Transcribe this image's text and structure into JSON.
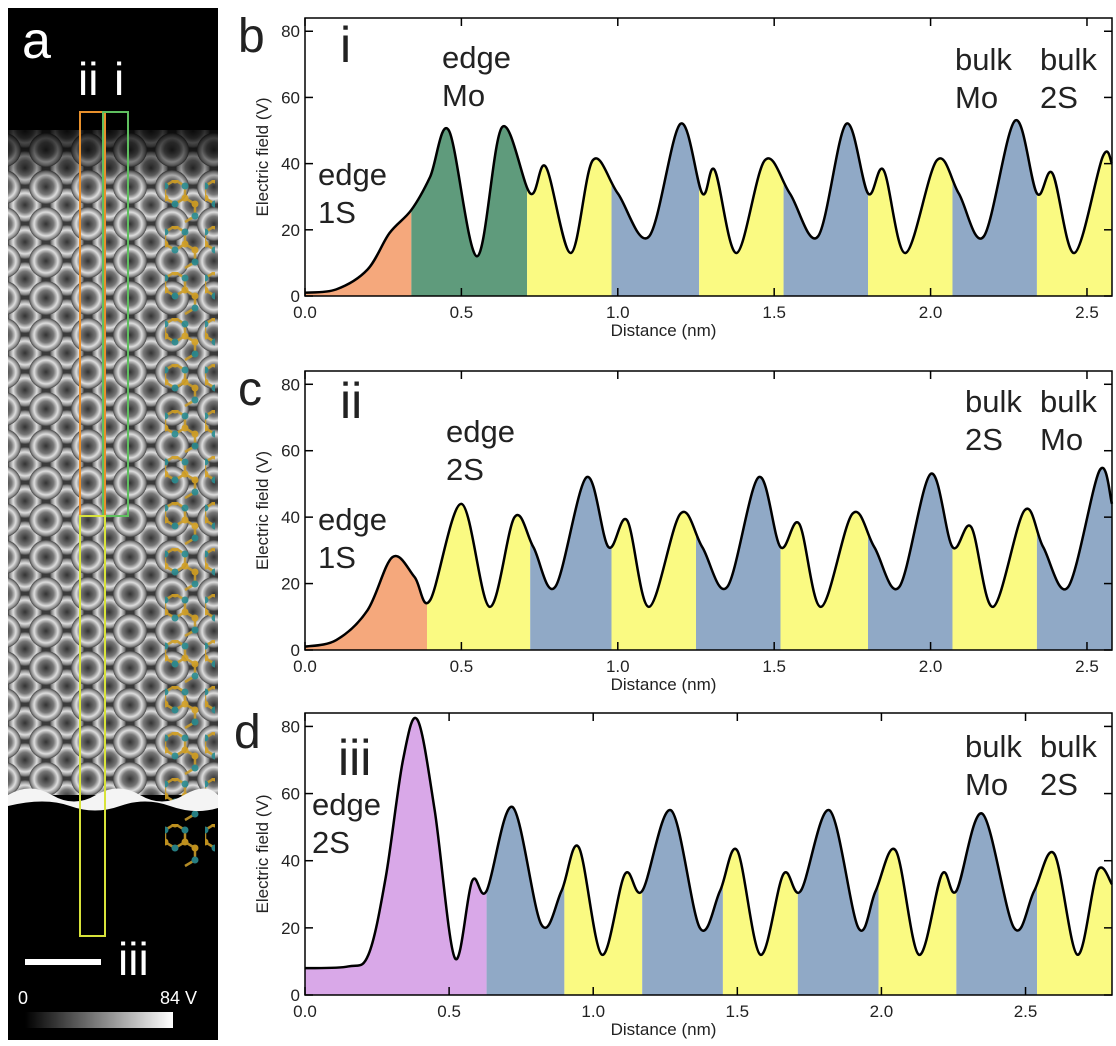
{
  "panel_a": {
    "label": "a",
    "region_labels": [
      "ii",
      "i",
      "iii"
    ],
    "colorbar_ticks": [
      0,
      {
        "value": 84,
        "label": "84 V"
      }
    ]
  },
  "chart_data": [
    {
      "type": "area",
      "panel_label": "b",
      "trace_label": "i",
      "xlabel": "Distance (nm)",
      "ylabel": "Electric field (V)",
      "annotations": [
        [
          "edge",
          "1S"
        ],
        [
          "edge",
          "Mo"
        ],
        [
          "bulk",
          "Mo"
        ],
        [
          "bulk",
          "2S"
        ]
      ],
      "xlim": [
        0,
        2.58
      ],
      "ylim": [
        0,
        84
      ],
      "xticks": [
        {
          "value": 0,
          "label": "0.0"
        },
        {
          "value": 0.5,
          "label": "0.5"
        },
        {
          "value": 1,
          "label": "1.0"
        },
        {
          "value": 1.5,
          "label": "1.5"
        },
        {
          "value": 2,
          "label": "2.0"
        },
        {
          "value": 2.5,
          "label": "2.5"
        }
      ],
      "yticks": [
        0,
        20,
        40,
        60,
        80
      ],
      "color": "#000000",
      "x": [
        0,
        0.1,
        0.2,
        0.27,
        0.34,
        0.4,
        0.46,
        0.55,
        0.63,
        0.72,
        0.77,
        0.85,
        0.92,
        1.0,
        1.1,
        1.2,
        1.27,
        1.31,
        1.38,
        1.47,
        1.55,
        1.64,
        1.73,
        1.8,
        1.85,
        1.92,
        2.02,
        2.09,
        2.17,
        2.27,
        2.34,
        2.39,
        2.46,
        2.55,
        2.58
      ],
      "values": [
        1,
        2,
        8,
        19,
        26,
        36,
        50,
        12,
        51,
        31,
        39,
        13,
        41,
        31,
        18,
        52,
        31,
        38,
        13,
        41,
        31,
        18,
        52,
        31,
        38,
        13,
        41,
        31,
        18,
        53,
        31,
        37,
        13,
        42,
        40
      ],
      "region_bounds": [
        0,
        0.34,
        0.71,
        0.98,
        1.26,
        1.53,
        1.8,
        2.07,
        2.34,
        2.58
      ],
      "region_colors": [
        "#f5a87c",
        "#5f9b7c",
        "#fafa82",
        "#90a9c6",
        "#fafa82",
        "#90a9c6",
        "#fafa82",
        "#90a9c6",
        "#fafa82"
      ]
    },
    {
      "type": "area",
      "panel_label": "c",
      "trace_label": "ii",
      "xlabel": "Distance (nm)",
      "ylabel": "Electric field (V)",
      "annotations": [
        [
          "edge",
          "1S"
        ],
        [
          "edge",
          "2S"
        ],
        [
          "bulk",
          "2S"
        ],
        [
          "bulk",
          "Mo"
        ]
      ],
      "xlim": [
        0,
        2.58
      ],
      "ylim": [
        0,
        84
      ],
      "xticks": [
        {
          "value": 0,
          "label": "0.0"
        },
        {
          "value": 0.5,
          "label": "0.5"
        },
        {
          "value": 1,
          "label": "1.0"
        },
        {
          "value": 1.5,
          "label": "1.5"
        },
        {
          "value": 2,
          "label": "2.0"
        },
        {
          "value": 2.5,
          "label": "2.5"
        }
      ],
      "yticks": [
        0,
        20,
        40,
        60,
        80
      ],
      "color": "#000000",
      "x": [
        0,
        0.1,
        0.2,
        0.28,
        0.35,
        0.4,
        0.5,
        0.59,
        0.67,
        0.73,
        0.8,
        0.9,
        0.97,
        1.03,
        1.1,
        1.2,
        1.27,
        1.35,
        1.45,
        1.52,
        1.58,
        1.65,
        1.75,
        1.82,
        1.9,
        2.0,
        2.07,
        2.13,
        2.2,
        2.3,
        2.36,
        2.44,
        2.54,
        2.58
      ],
      "values": [
        1,
        3,
        12,
        28,
        22,
        15,
        44,
        13,
        40,
        31,
        19,
        52,
        31,
        39,
        13,
        41,
        31,
        19,
        52,
        31,
        38,
        13,
        41,
        31,
        19,
        53,
        31,
        37,
        13,
        42,
        31,
        19,
        54,
        44
      ],
      "region_bounds": [
        0,
        0.39,
        0.72,
        0.98,
        1.25,
        1.52,
        1.8,
        2.07,
        2.34,
        2.58
      ],
      "region_colors": [
        "#f5a87c",
        "#fafa82",
        "#90a9c6",
        "#fafa82",
        "#90a9c6",
        "#fafa82",
        "#90a9c6",
        "#fafa82",
        "#90a9c6"
      ]
    },
    {
      "type": "area",
      "panel_label": "d",
      "trace_label": "iii",
      "xlabel": "Distance (nm)",
      "ylabel": "Electric field (V)",
      "annotations": [
        [
          "edge",
          "2S"
        ],
        [
          "bulk",
          "Mo"
        ],
        [
          "bulk",
          "2S"
        ]
      ],
      "xlim": [
        0,
        2.8
      ],
      "ylim": [
        0,
        84
      ],
      "xticks": [
        {
          "value": 0,
          "label": "0.0"
        },
        {
          "value": 0.5,
          "label": "0.5"
        },
        {
          "value": 1,
          "label": "1.0"
        },
        {
          "value": 1.5,
          "label": "1.5"
        },
        {
          "value": 2,
          "label": "2.0"
        },
        {
          "value": 2.5,
          "label": "2.5"
        }
      ],
      "yticks": [
        0,
        20,
        40,
        60,
        80
      ],
      "color": "#000000",
      "x": [
        0,
        0.15,
        0.22,
        0.28,
        0.34,
        0.39,
        0.45,
        0.52,
        0.58,
        0.63,
        0.72,
        0.82,
        0.89,
        0.95,
        1.03,
        1.11,
        1.17,
        1.27,
        1.37,
        1.44,
        1.5,
        1.58,
        1.66,
        1.72,
        1.82,
        1.92,
        1.98,
        2.05,
        2.13,
        2.21,
        2.26,
        2.35,
        2.46,
        2.53,
        2.6,
        2.68,
        2.75,
        2.8
      ],
      "values": [
        8,
        8.5,
        12,
        35,
        70,
        82,
        55,
        11,
        34,
        31,
        56,
        21,
        31,
        44,
        12,
        36,
        31,
        55,
        20,
        31,
        43,
        12,
        36,
        31,
        55,
        20,
        31,
        43,
        12,
        36,
        31,
        54,
        20,
        31,
        42,
        12,
        37,
        33
      ],
      "region_bounds": [
        0,
        0.63,
        0.9,
        1.17,
        1.45,
        1.71,
        1.99,
        2.26,
        2.54,
        2.8
      ],
      "region_colors": [
        "#d9a8e8",
        "#90a9c6",
        "#fafa82",
        "#90a9c6",
        "#fafa82",
        "#90a9c6",
        "#fafa82",
        "#90a9c6",
        "#fafa82"
      ]
    }
  ]
}
